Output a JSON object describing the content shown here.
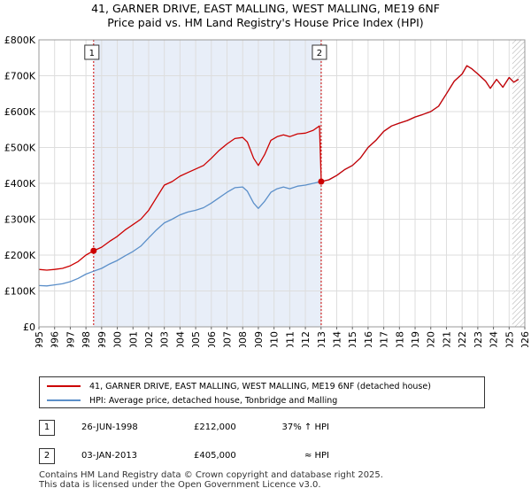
{
  "title_line1": "41, GARNER DRIVE, EAST MALLING, WEST MALLING, ME19 6NF",
  "title_line2": "Price paid vs. HM Land Registry's House Price Index (HPI)",
  "chart_data": {
    "type": "line",
    "xlim": [
      1995.0,
      2026.0
    ],
    "ylim": [
      0,
      800000
    ],
    "y_ticks": [
      0,
      100000,
      200000,
      300000,
      400000,
      500000,
      600000,
      700000,
      800000
    ],
    "y_tick_labels": [
      "£0",
      "£100K",
      "£200K",
      "£300K",
      "£400K",
      "£500K",
      "£600K",
      "£700K",
      "£800K"
    ],
    "x_ticks": [
      1995,
      1996,
      1997,
      1998,
      1999,
      2000,
      2001,
      2002,
      2003,
      2004,
      2005,
      2006,
      2007,
      2008,
      2009,
      2010,
      2011,
      2012,
      2013,
      2014,
      2015,
      2016,
      2017,
      2018,
      2019,
      2020,
      2021,
      2022,
      2023,
      2024,
      2025,
      2026
    ],
    "shaded_period": [
      1998.49,
      2013.01
    ],
    "forecast_start": 2025.2,
    "series": [
      {
        "name": "41, GARNER DRIVE, EAST MALLING, WEST MALLING, ME19 6NF (detached house)",
        "color": "#cc0000",
        "points": [
          [
            1995.0,
            160000
          ],
          [
            1995.5,
            158000
          ],
          [
            1996.0,
            160000
          ],
          [
            1996.5,
            163000
          ],
          [
            1997.0,
            170000
          ],
          [
            1997.5,
            182000
          ],
          [
            1998.0,
            200000
          ],
          [
            1998.49,
            212000
          ],
          [
            1999.0,
            222000
          ],
          [
            1999.5,
            238000
          ],
          [
            2000.0,
            252000
          ],
          [
            2000.5,
            270000
          ],
          [
            2001.0,
            285000
          ],
          [
            2001.5,
            300000
          ],
          [
            2002.0,
            325000
          ],
          [
            2002.5,
            360000
          ],
          [
            2003.0,
            395000
          ],
          [
            2003.5,
            405000
          ],
          [
            2004.0,
            420000
          ],
          [
            2004.5,
            430000
          ],
          [
            2005.0,
            440000
          ],
          [
            2005.5,
            450000
          ],
          [
            2006.0,
            470000
          ],
          [
            2006.5,
            492000
          ],
          [
            2007.0,
            510000
          ],
          [
            2007.5,
            525000
          ],
          [
            2008.0,
            528000
          ],
          [
            2008.3,
            515000
          ],
          [
            2008.7,
            470000
          ],
          [
            2009.0,
            450000
          ],
          [
            2009.4,
            480000
          ],
          [
            2009.8,
            520000
          ],
          [
            2010.2,
            530000
          ],
          [
            2010.6,
            535000
          ],
          [
            2011.0,
            530000
          ],
          [
            2011.5,
            538000
          ],
          [
            2012.0,
            540000
          ],
          [
            2012.5,
            548000
          ],
          [
            2012.9,
            560000
          ],
          [
            2013.01,
            405000
          ],
          [
            2013.5,
            410000
          ],
          [
            2014.0,
            422000
          ],
          [
            2014.5,
            438000
          ],
          [
            2015.0,
            450000
          ],
          [
            2015.5,
            470000
          ],
          [
            2016.0,
            500000
          ],
          [
            2016.5,
            520000
          ],
          [
            2017.0,
            545000
          ],
          [
            2017.5,
            560000
          ],
          [
            2018.0,
            568000
          ],
          [
            2018.5,
            575000
          ],
          [
            2019.0,
            585000
          ],
          [
            2019.5,
            592000
          ],
          [
            2020.0,
            600000
          ],
          [
            2020.5,
            615000
          ],
          [
            2021.0,
            650000
          ],
          [
            2021.5,
            685000
          ],
          [
            2022.0,
            705000
          ],
          [
            2022.3,
            728000
          ],
          [
            2022.6,
            720000
          ],
          [
            2023.0,
            705000
          ],
          [
            2023.5,
            685000
          ],
          [
            2023.8,
            665000
          ],
          [
            2024.2,
            690000
          ],
          [
            2024.6,
            668000
          ],
          [
            2025.0,
            695000
          ],
          [
            2025.3,
            682000
          ],
          [
            2025.6,
            690000
          ]
        ]
      },
      {
        "name": "HPI: Average price, detached house, Tonbridge and Malling",
        "color": "#5b8fc9",
        "points": [
          [
            1995.0,
            115000
          ],
          [
            1995.5,
            114000
          ],
          [
            1996.0,
            117000
          ],
          [
            1996.5,
            120000
          ],
          [
            1997.0,
            126000
          ],
          [
            1997.5,
            135000
          ],
          [
            1998.0,
            147000
          ],
          [
            1998.49,
            155000
          ],
          [
            1999.0,
            163000
          ],
          [
            1999.5,
            175000
          ],
          [
            2000.0,
            185000
          ],
          [
            2000.5,
            198000
          ],
          [
            2001.0,
            210000
          ],
          [
            2001.5,
            225000
          ],
          [
            2002.0,
            248000
          ],
          [
            2002.5,
            270000
          ],
          [
            2003.0,
            290000
          ],
          [
            2003.5,
            300000
          ],
          [
            2004.0,
            312000
          ],
          [
            2004.5,
            320000
          ],
          [
            2005.0,
            325000
          ],
          [
            2005.5,
            332000
          ],
          [
            2006.0,
            345000
          ],
          [
            2006.5,
            360000
          ],
          [
            2007.0,
            375000
          ],
          [
            2007.5,
            388000
          ],
          [
            2008.0,
            390000
          ],
          [
            2008.3,
            378000
          ],
          [
            2008.7,
            345000
          ],
          [
            2009.0,
            330000
          ],
          [
            2009.4,
            350000
          ],
          [
            2009.8,
            375000
          ],
          [
            2010.2,
            385000
          ],
          [
            2010.6,
            390000
          ],
          [
            2011.0,
            385000
          ],
          [
            2011.5,
            392000
          ],
          [
            2012.0,
            395000
          ],
          [
            2012.5,
            400000
          ],
          [
            2013.01,
            405000
          ],
          [
            2013.5,
            410000
          ],
          [
            2014.0,
            422000
          ],
          [
            2014.5,
            438000
          ],
          [
            2015.0,
            450000
          ],
          [
            2015.5,
            470000
          ],
          [
            2016.0,
            500000
          ],
          [
            2016.5,
            520000
          ],
          [
            2017.0,
            545000
          ],
          [
            2017.5,
            560000
          ],
          [
            2018.0,
            568000
          ],
          [
            2018.5,
            575000
          ],
          [
            2019.0,
            585000
          ],
          [
            2019.5,
            592000
          ],
          [
            2020.0,
            600000
          ],
          [
            2020.5,
            615000
          ],
          [
            2021.0,
            650000
          ],
          [
            2021.5,
            685000
          ],
          [
            2022.0,
            705000
          ],
          [
            2022.3,
            728000
          ],
          [
            2022.6,
            720000
          ],
          [
            2023.0,
            705000
          ],
          [
            2023.5,
            685000
          ],
          [
            2023.8,
            665000
          ],
          [
            2024.2,
            690000
          ],
          [
            2024.6,
            668000
          ],
          [
            2025.0,
            695000
          ],
          [
            2025.3,
            682000
          ],
          [
            2025.6,
            690000
          ]
        ]
      }
    ],
    "markers": [
      {
        "label": "1",
        "x": 1998.49,
        "y": 212000
      },
      {
        "label": "2",
        "x": 2013.01,
        "y": 405000
      }
    ]
  },
  "legend": {
    "property_label": "41, GARNER DRIVE, EAST MALLING, WEST MALLING, ME19 6NF (detached house)",
    "hpi_label": "HPI: Average price, detached house, Tonbridge and Malling"
  },
  "sales": [
    {
      "num": "1",
      "date": "26-JUN-1998",
      "price": "£212,000",
      "relation": "37% ↑ HPI"
    },
    {
      "num": "2",
      "date": "03-JAN-2013",
      "price": "£405,000",
      "relation": "≈ HPI"
    }
  ],
  "footer_line1": "Contains HM Land Registry data © Crown copyright and database right 2025.",
  "footer_line2": "This data is licensed under the Open Government Licence v3.0."
}
